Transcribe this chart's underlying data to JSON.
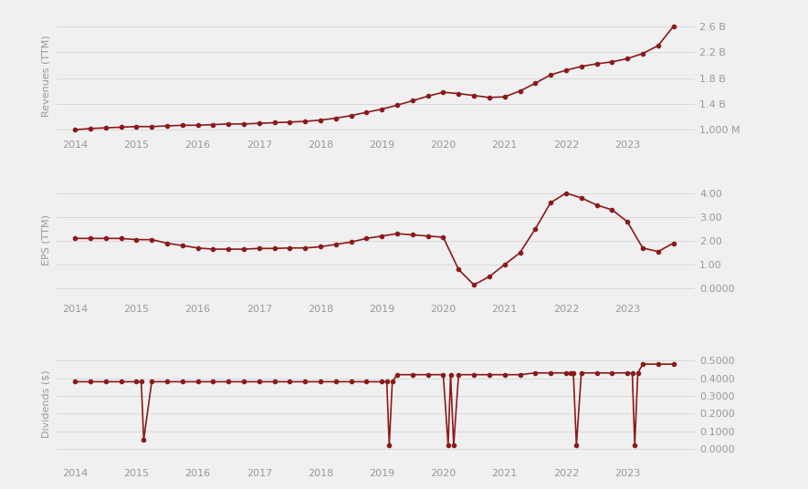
{
  "line_color": "#8B1A1A",
  "marker_color": "#8B1A1A",
  "bg_color": "#f0f0f0",
  "panel_bg": "#f0f0f0",
  "grid_color": "#d8d8d8",
  "tick_color": "#999999",
  "revenue_x": [
    2014.0,
    2014.25,
    2014.5,
    2014.75,
    2015.0,
    2015.25,
    2015.5,
    2015.75,
    2016.0,
    2016.25,
    2016.5,
    2016.75,
    2017.0,
    2017.25,
    2017.5,
    2017.75,
    2018.0,
    2018.25,
    2018.5,
    2018.75,
    2019.0,
    2019.25,
    2019.5,
    2019.75,
    2020.0,
    2020.25,
    2020.5,
    2020.75,
    2021.0,
    2021.25,
    2021.5,
    2021.75,
    2022.0,
    2022.25,
    2022.5,
    2022.75,
    2023.0,
    2023.25,
    2023.5,
    2023.75
  ],
  "revenue_y": [
    1.0,
    1.02,
    1.03,
    1.04,
    1.05,
    1.05,
    1.06,
    1.07,
    1.07,
    1.08,
    1.09,
    1.09,
    1.1,
    1.11,
    1.12,
    1.13,
    1.15,
    1.18,
    1.22,
    1.27,
    1.32,
    1.38,
    1.45,
    1.52,
    1.58,
    1.56,
    1.53,
    1.5,
    1.51,
    1.6,
    1.72,
    1.85,
    1.92,
    1.98,
    2.02,
    2.05,
    2.1,
    2.18,
    2.3,
    2.6
  ],
  "revenue_yticks": [
    1.0,
    1.4,
    1.8,
    2.2,
    2.6
  ],
  "revenue_ytick_labels": [
    "1,000 M",
    "1.4 B",
    "1.8 B",
    "2.2 B",
    "2.6 B"
  ],
  "revenue_ylim": [
    0.9,
    2.78
  ],
  "eps_x": [
    2014.0,
    2014.25,
    2014.5,
    2014.75,
    2015.0,
    2015.25,
    2015.5,
    2015.75,
    2016.0,
    2016.25,
    2016.5,
    2016.75,
    2017.0,
    2017.25,
    2017.5,
    2017.75,
    2018.0,
    2018.25,
    2018.5,
    2018.75,
    2019.0,
    2019.25,
    2019.5,
    2019.75,
    2020.0,
    2020.25,
    2020.5,
    2020.75,
    2021.0,
    2021.25,
    2021.5,
    2021.75,
    2022.0,
    2022.25,
    2022.5,
    2022.75,
    2023.0,
    2023.25,
    2023.5,
    2023.75
  ],
  "eps_y": [
    2.1,
    2.1,
    2.1,
    2.1,
    2.05,
    2.05,
    1.9,
    1.8,
    1.7,
    1.65,
    1.65,
    1.65,
    1.68,
    1.68,
    1.7,
    1.7,
    1.75,
    1.85,
    1.95,
    2.1,
    2.2,
    2.3,
    2.25,
    2.2,
    2.15,
    0.8,
    0.15,
    0.5,
    1.0,
    1.5,
    2.5,
    3.6,
    4.0,
    3.8,
    3.5,
    3.3,
    2.8,
    1.7,
    1.55,
    1.9
  ],
  "eps_yticks": [
    0.0,
    1.0,
    2.0,
    3.0,
    4.0
  ],
  "eps_ytick_labels": [
    "0.0000",
    "1.00",
    "2.00",
    "3.00",
    "4.00"
  ],
  "eps_ylim": [
    -0.5,
    4.6
  ],
  "div_x": [
    2014.0,
    2014.25,
    2014.5,
    2014.75,
    2015.0,
    2015.08,
    2015.12,
    2015.25,
    2015.5,
    2015.75,
    2016.0,
    2016.25,
    2016.5,
    2016.75,
    2017.0,
    2017.25,
    2017.5,
    2017.75,
    2018.0,
    2018.25,
    2018.5,
    2018.75,
    2019.0,
    2019.08,
    2019.12,
    2019.17,
    2019.25,
    2019.5,
    2019.75,
    2020.0,
    2020.08,
    2020.12,
    2020.17,
    2020.25,
    2020.5,
    2020.75,
    2021.0,
    2021.25,
    2021.5,
    2021.75,
    2022.0,
    2022.08,
    2022.12,
    2022.17,
    2022.25,
    2022.5,
    2022.75,
    2023.0,
    2023.08,
    2023.12,
    2023.17,
    2023.25,
    2023.5,
    2023.75
  ],
  "div_y": [
    0.38,
    0.38,
    0.38,
    0.38,
    0.38,
    0.38,
    0.05,
    0.38,
    0.38,
    0.38,
    0.38,
    0.38,
    0.38,
    0.38,
    0.38,
    0.38,
    0.38,
    0.38,
    0.38,
    0.38,
    0.38,
    0.38,
    0.38,
    0.38,
    0.02,
    0.38,
    0.42,
    0.42,
    0.42,
    0.42,
    0.02,
    0.42,
    0.02,
    0.42,
    0.42,
    0.42,
    0.42,
    0.42,
    0.43,
    0.43,
    0.43,
    0.43,
    0.43,
    0.02,
    0.43,
    0.43,
    0.43,
    0.43,
    0.43,
    0.02,
    0.43,
    0.48,
    0.48,
    0.48
  ],
  "div_yticks": [
    0.0,
    0.1,
    0.2,
    0.3,
    0.4,
    0.5
  ],
  "div_ytick_labels": [
    "0.0000",
    "0.1000",
    "0.2000",
    "0.3000",
    "0.4000",
    "0.5000"
  ],
  "div_ylim": [
    -0.09,
    0.6
  ],
  "xlabel_years": [
    2014,
    2015,
    2016,
    2017,
    2018,
    2019,
    2020,
    2021,
    2022,
    2023
  ],
  "xlim": [
    2013.7,
    2024.1
  ]
}
